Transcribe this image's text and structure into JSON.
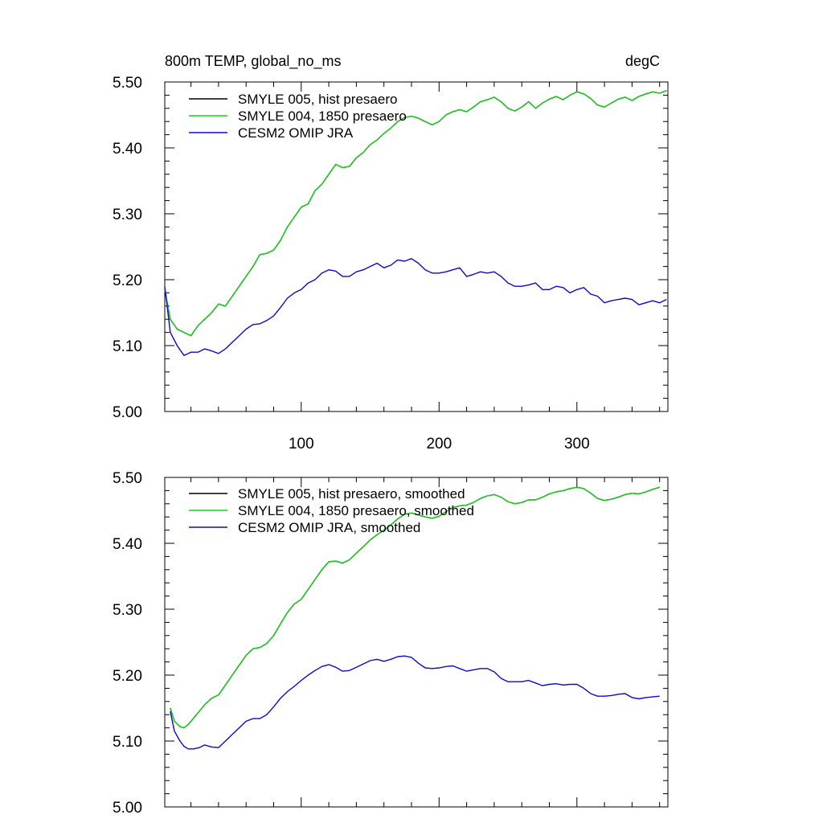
{
  "colors": {
    "smyle005": "#000000",
    "smyle004": "#18d018",
    "cesm2": "#0a0ad0"
  },
  "chart_data": [
    {
      "type": "line",
      "title": "800m TEMP, global_no_ms",
      "units": "degC",
      "xlim": [
        1,
        366
      ],
      "ylim": [
        5.0,
        5.5
      ],
      "x_ticks": [
        100,
        200,
        300
      ],
      "y_ticks": [
        "5.00",
        "5.10",
        "5.20",
        "5.30",
        "5.40",
        "5.50"
      ],
      "show_x_tick_labels": true,
      "grid": false,
      "legend_position": "top-left",
      "series": [
        {
          "name": "SMYLE 005, hist presaero",
          "color": "#000000",
          "x": [
            1,
            5,
            10,
            15,
            20,
            25,
            30,
            35,
            40,
            45,
            50,
            55,
            60,
            65,
            70,
            75,
            80,
            85,
            90,
            95,
            100,
            105,
            110,
            115,
            120,
            125,
            130,
            135,
            140,
            145,
            150,
            155,
            160,
            165,
            170,
            175,
            180,
            185,
            190,
            195,
            200,
            205,
            210,
            215,
            220,
            225,
            230,
            235,
            240,
            245,
            250,
            255,
            260,
            265,
            270,
            275,
            280,
            285,
            290,
            295,
            300,
            305,
            310,
            315,
            320,
            325,
            330,
            335,
            340,
            345,
            350,
            355,
            360,
            365
          ],
          "y": [
            5.185,
            5.14,
            5.125,
            5.12,
            5.115,
            5.13,
            5.14,
            5.15,
            5.163,
            5.16,
            5.175,
            5.19,
            5.205,
            5.22,
            5.238,
            5.24,
            5.245,
            5.26,
            5.28,
            5.295,
            5.31,
            5.315,
            5.335,
            5.345,
            5.36,
            5.375,
            5.37,
            5.372,
            5.385,
            5.393,
            5.405,
            5.412,
            5.422,
            5.43,
            5.44,
            5.446,
            5.448,
            5.445,
            5.44,
            5.435,
            5.44,
            5.45,
            5.455,
            5.458,
            5.455,
            5.462,
            5.47,
            5.473,
            5.477,
            5.47,
            5.46,
            5.456,
            5.462,
            5.47,
            5.46,
            5.468,
            5.474,
            5.478,
            5.473,
            5.48,
            5.485,
            5.482,
            5.475,
            5.465,
            5.462,
            5.468,
            5.474,
            5.477,
            5.472,
            5.478,
            5.482,
            5.485,
            5.483,
            5.487
          ]
        },
        {
          "name": "SMYLE 004, 1850 presaero",
          "color": "#18d018",
          "x": [
            1,
            5,
            10,
            15,
            20,
            25,
            30,
            35,
            40,
            45,
            50,
            55,
            60,
            65,
            70,
            75,
            80,
            85,
            90,
            95,
            100,
            105,
            110,
            115,
            120,
            125,
            130,
            135,
            140,
            145,
            150,
            155,
            160,
            165,
            170,
            175,
            180,
            185,
            190,
            195,
            200,
            205,
            210,
            215,
            220,
            225,
            230,
            235,
            240,
            245,
            250,
            255,
            260,
            265,
            270,
            275,
            280,
            285,
            290,
            295,
            300,
            305,
            310,
            315,
            320,
            325,
            330,
            335,
            340,
            345,
            350,
            355,
            360,
            365
          ],
          "y": [
            5.185,
            5.14,
            5.125,
            5.12,
            5.115,
            5.13,
            5.14,
            5.15,
            5.163,
            5.16,
            5.175,
            5.19,
            5.205,
            5.22,
            5.238,
            5.24,
            5.245,
            5.26,
            5.28,
            5.295,
            5.31,
            5.315,
            5.335,
            5.345,
            5.36,
            5.375,
            5.37,
            5.372,
            5.385,
            5.393,
            5.405,
            5.412,
            5.422,
            5.43,
            5.44,
            5.446,
            5.448,
            5.445,
            5.44,
            5.435,
            5.44,
            5.45,
            5.455,
            5.458,
            5.455,
            5.462,
            5.47,
            5.473,
            5.477,
            5.47,
            5.46,
            5.456,
            5.462,
            5.47,
            5.46,
            5.468,
            5.474,
            5.478,
            5.473,
            5.48,
            5.485,
            5.482,
            5.475,
            5.465,
            5.462,
            5.468,
            5.474,
            5.477,
            5.472,
            5.478,
            5.482,
            5.485,
            5.483,
            5.487
          ]
        },
        {
          "name": "CESM2 OMIP JRA",
          "color": "#0a0ad0",
          "x": [
            1,
            5,
            10,
            15,
            20,
            25,
            30,
            35,
            40,
            45,
            50,
            55,
            60,
            65,
            70,
            75,
            80,
            85,
            90,
            95,
            100,
            105,
            110,
            115,
            120,
            125,
            130,
            135,
            140,
            145,
            150,
            155,
            160,
            165,
            170,
            175,
            180,
            185,
            190,
            195,
            200,
            205,
            210,
            215,
            220,
            225,
            230,
            235,
            240,
            245,
            250,
            255,
            260,
            265,
            270,
            275,
            280,
            285,
            290,
            295,
            300,
            305,
            310,
            315,
            320,
            325,
            330,
            335,
            340,
            345,
            350,
            355,
            360,
            365
          ],
          "y": [
            5.19,
            5.12,
            5.1,
            5.085,
            5.09,
            5.09,
            5.095,
            5.092,
            5.088,
            5.095,
            5.105,
            5.115,
            5.125,
            5.132,
            5.133,
            5.138,
            5.145,
            5.158,
            5.172,
            5.18,
            5.185,
            5.195,
            5.2,
            5.21,
            5.215,
            5.213,
            5.205,
            5.205,
            5.212,
            5.215,
            5.22,
            5.225,
            5.218,
            5.222,
            5.23,
            5.228,
            5.232,
            5.225,
            5.215,
            5.21,
            5.21,
            5.212,
            5.215,
            5.218,
            5.205,
            5.208,
            5.212,
            5.21,
            5.212,
            5.205,
            5.195,
            5.19,
            5.19,
            5.192,
            5.195,
            5.185,
            5.185,
            5.19,
            5.188,
            5.18,
            5.185,
            5.188,
            5.178,
            5.175,
            5.165,
            5.168,
            5.17,
            5.172,
            5.17,
            5.162,
            5.165,
            5.168,
            5.165,
            5.17
          ]
        }
      ]
    },
    {
      "type": "line",
      "xlim": [
        1,
        366
      ],
      "ylim": [
        5.0,
        5.5
      ],
      "x_ticks": [
        100,
        200,
        300
      ],
      "y_ticks": [
        "5.00",
        "5.10",
        "5.20",
        "5.30",
        "5.40",
        "5.50"
      ],
      "show_x_tick_labels": false,
      "grid": false,
      "legend_position": "top-left",
      "series": [
        {
          "name": "SMYLE 005, hist presaero, smoothed",
          "color": "#000000",
          "x": [
            5,
            8,
            12,
            15,
            18,
            22,
            26,
            30,
            35,
            40,
            45,
            50,
            55,
            60,
            65,
            70,
            75,
            80,
            85,
            90,
            95,
            100,
            105,
            110,
            115,
            120,
            125,
            130,
            135,
            140,
            145,
            150,
            155,
            160,
            165,
            170,
            175,
            180,
            185,
            190,
            195,
            200,
            205,
            210,
            215,
            220,
            225,
            230,
            235,
            240,
            245,
            250,
            255,
            260,
            265,
            270,
            275,
            280,
            285,
            290,
            295,
            300,
            305,
            310,
            315,
            320,
            325,
            330,
            335,
            340,
            345,
            350,
            355,
            360
          ],
          "y": [
            5.15,
            5.13,
            5.122,
            5.12,
            5.125,
            5.135,
            5.145,
            5.155,
            5.165,
            5.17,
            5.185,
            5.2,
            5.215,
            5.23,
            5.24,
            5.242,
            5.248,
            5.26,
            5.278,
            5.295,
            5.308,
            5.315,
            5.33,
            5.345,
            5.36,
            5.372,
            5.373,
            5.37,
            5.375,
            5.385,
            5.395,
            5.405,
            5.413,
            5.42,
            5.428,
            5.437,
            5.444,
            5.446,
            5.443,
            5.44,
            5.438,
            5.441,
            5.448,
            5.454,
            5.457,
            5.458,
            5.462,
            5.468,
            5.472,
            5.474,
            5.47,
            5.463,
            5.46,
            5.462,
            5.466,
            5.466,
            5.47,
            5.475,
            5.478,
            5.48,
            5.483,
            5.485,
            5.483,
            5.476,
            5.468,
            5.465,
            5.467,
            5.47,
            5.474,
            5.476,
            5.475,
            5.478,
            5.482,
            5.485
          ]
        },
        {
          "name": "SMYLE 004, 1850 presaero, smoothed",
          "color": "#18d018",
          "x": [
            5,
            8,
            12,
            15,
            18,
            22,
            26,
            30,
            35,
            40,
            45,
            50,
            55,
            60,
            65,
            70,
            75,
            80,
            85,
            90,
            95,
            100,
            105,
            110,
            115,
            120,
            125,
            130,
            135,
            140,
            145,
            150,
            155,
            160,
            165,
            170,
            175,
            180,
            185,
            190,
            195,
            200,
            205,
            210,
            215,
            220,
            225,
            230,
            235,
            240,
            245,
            250,
            255,
            260,
            265,
            270,
            275,
            280,
            285,
            290,
            295,
            300,
            305,
            310,
            315,
            320,
            325,
            330,
            335,
            340,
            345,
            350,
            355,
            360
          ],
          "y": [
            5.15,
            5.13,
            5.122,
            5.12,
            5.125,
            5.135,
            5.145,
            5.155,
            5.165,
            5.17,
            5.185,
            5.2,
            5.215,
            5.23,
            5.24,
            5.242,
            5.248,
            5.26,
            5.278,
            5.295,
            5.308,
            5.315,
            5.33,
            5.345,
            5.36,
            5.372,
            5.373,
            5.37,
            5.375,
            5.385,
            5.395,
            5.405,
            5.413,
            5.42,
            5.428,
            5.437,
            5.444,
            5.446,
            5.443,
            5.44,
            5.438,
            5.441,
            5.448,
            5.454,
            5.457,
            5.458,
            5.462,
            5.468,
            5.472,
            5.474,
            5.47,
            5.463,
            5.46,
            5.462,
            5.466,
            5.466,
            5.47,
            5.475,
            5.478,
            5.48,
            5.483,
            5.485,
            5.483,
            5.476,
            5.468,
            5.465,
            5.467,
            5.47,
            5.474,
            5.476,
            5.475,
            5.478,
            5.482,
            5.485
          ]
        },
        {
          "name": "CESM2 OMIP JRA, smoothed",
          "color": "#0a0ad0",
          "x": [
            5,
            8,
            12,
            15,
            18,
            22,
            26,
            30,
            35,
            40,
            45,
            50,
            55,
            60,
            65,
            70,
            75,
            80,
            85,
            90,
            95,
            100,
            105,
            110,
            115,
            120,
            125,
            130,
            135,
            140,
            145,
            150,
            155,
            160,
            165,
            170,
            175,
            180,
            185,
            190,
            195,
            200,
            205,
            210,
            215,
            220,
            225,
            230,
            235,
            240,
            245,
            250,
            255,
            260,
            265,
            270,
            275,
            280,
            285,
            290,
            295,
            300,
            305,
            310,
            315,
            320,
            325,
            330,
            335,
            340,
            345,
            350,
            355,
            360
          ],
          "y": [
            5.145,
            5.115,
            5.1,
            5.092,
            5.088,
            5.088,
            5.09,
            5.094,
            5.091,
            5.09,
            5.1,
            5.11,
            5.12,
            5.13,
            5.134,
            5.134,
            5.14,
            5.152,
            5.165,
            5.175,
            5.183,
            5.192,
            5.2,
            5.207,
            5.213,
            5.216,
            5.212,
            5.206,
            5.207,
            5.212,
            5.217,
            5.222,
            5.224,
            5.221,
            5.224,
            5.228,
            5.229,
            5.227,
            5.218,
            5.211,
            5.21,
            5.211,
            5.213,
            5.214,
            5.21,
            5.206,
            5.208,
            5.21,
            5.21,
            5.205,
            5.195,
            5.19,
            5.19,
            5.19,
            5.192,
            5.188,
            5.184,
            5.186,
            5.187,
            5.185,
            5.186,
            5.186,
            5.18,
            5.172,
            5.168,
            5.168,
            5.169,
            5.171,
            5.172,
            5.166,
            5.164,
            5.166,
            5.167,
            5.168
          ]
        }
      ]
    }
  ]
}
